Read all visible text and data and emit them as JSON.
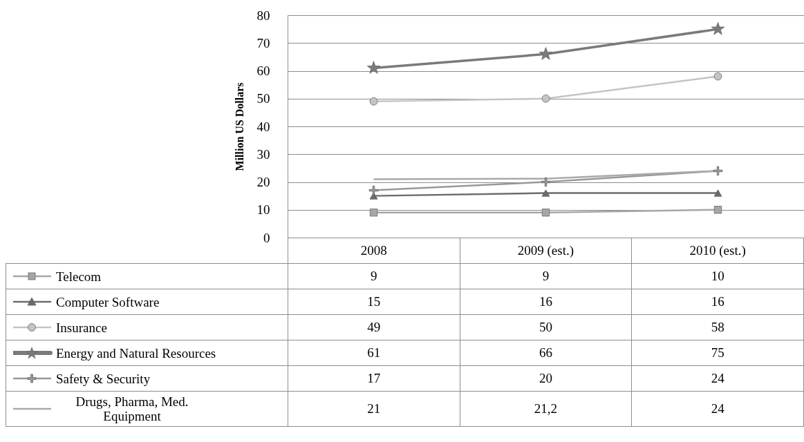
{
  "chart_data": {
    "type": "line",
    "ylabel": "Million US Dollars",
    "categories": [
      "2008",
      "2009 (est.)",
      "2010 (est.)"
    ],
    "ylim": [
      0,
      80
    ],
    "yticks": [
      0,
      10,
      20,
      30,
      40,
      50,
      60,
      70,
      80
    ],
    "grid": "y",
    "legend": "bottom",
    "series": [
      {
        "name": "Telecom",
        "color": "#a6a6a6",
        "marker": "square",
        "values": [
          9,
          9,
          10
        ],
        "value_labels": [
          "9",
          "9",
          "10"
        ]
      },
      {
        "name": "Computer Software",
        "color": "#6b6b6b",
        "marker": "triangle",
        "values": [
          15,
          16,
          16
        ],
        "value_labels": [
          "15",
          "16",
          "16"
        ]
      },
      {
        "name": "Insurance",
        "color": "#c4c4c4",
        "marker": "circle",
        "values": [
          49,
          50,
          58
        ],
        "value_labels": [
          "49",
          "50",
          "58"
        ]
      },
      {
        "name": "Energy and Natural Resources",
        "color": "#7a7a7a",
        "marker": "star",
        "values": [
          61,
          66,
          75
        ],
        "value_labels": [
          "61",
          "66",
          "75"
        ]
      },
      {
        "name": "Safety & Security",
        "color": "#989898",
        "marker": "cross",
        "values": [
          17,
          20,
          24
        ],
        "value_labels": [
          "17",
          "20",
          "24"
        ]
      },
      {
        "name": "Drugs, Pharma, Med. Equipment",
        "color": "#a9a9a9",
        "marker": "none",
        "values": [
          21,
          21.2,
          24
        ],
        "value_labels": [
          "21",
          "21,2",
          "24"
        ]
      }
    ]
  }
}
